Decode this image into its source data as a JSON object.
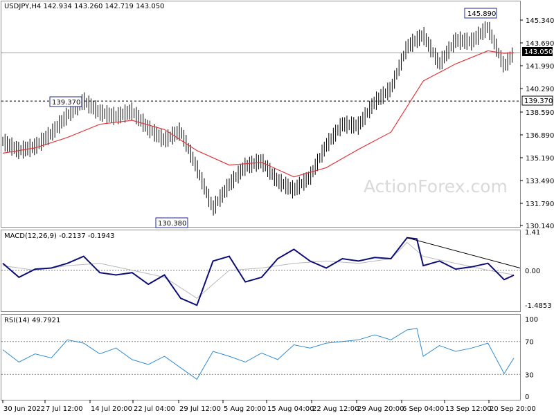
{
  "main_panel": {
    "header": "USDJPY,H4  142.934 143.260 142.719 143.050",
    "watermark": "ActionForex.com",
    "price_ticks": [
      "145.340",
      "143.690",
      "141.990",
      "140.290",
      "138.590",
      "136.890",
      "135.190",
      "133.490",
      "131.790",
      "130.140"
    ],
    "current_price": "143.050",
    "level_label": "139.370",
    "callouts": {
      "high": "145.890",
      "mid": "139.370",
      "low": "130.380"
    }
  },
  "macd_panel": {
    "header": "MACD(12,26,9) -0.2137 -0.1943",
    "ticks": [
      "1.41",
      "0.00",
      "-1.4853"
    ]
  },
  "rsi_panel": {
    "header": "RSI(14) 49.7921",
    "ticks": [
      "100",
      "70",
      "30",
      "0"
    ]
  },
  "x_axis": {
    "labels": [
      "30 Jun 2022",
      "7 Jul 12:00",
      "14 Jul 20:00",
      "22 Jul 04:00",
      "29 Jul 12:00",
      "5 Aug 20:00",
      "15 Aug 04:00",
      "22 Aug 12:00",
      "29 Aug 20:00",
      "6 Sep 04:00",
      "13 Sep 12:00",
      "20 Sep 20:00"
    ]
  },
  "colors": {
    "price": "#000000",
    "sma": "#e0393e",
    "macd": "#0c0c78",
    "signal": "#b8b8b8",
    "rsi": "#2f8bd1",
    "grid": "#808080"
  },
  "chart_data": [
    {
      "type": "line",
      "title": "USDJPY,H4",
      "series": [
        {
          "name": "",
          "x": [
            0,
            5,
            10,
            15,
            20,
            25,
            30,
            35,
            40,
            45,
            50,
            55,
            60,
            65,
            70,
            75,
            80,
            85,
            90,
            95,
            100,
            105,
            110,
            115,
            120,
            125,
            130,
            135,
            140,
            145,
            150,
            155,
            158
          ],
          "values": [
            136.3,
            135.6,
            135.9,
            136.9,
            138.3,
            139.4,
            138.5,
            138.2,
            138.6,
            137.3,
            136.4,
            137.1,
            134.3,
            131.2,
            133.0,
            134.4,
            134.8,
            133.3,
            132.6,
            133.6,
            136.0,
            137.6,
            137.5,
            139.3,
            140.3,
            143.5,
            144.4,
            142.2,
            144.0,
            143.9,
            145.0,
            142.0,
            143.05
          ]
        },
        {
          "name": "",
          "x": [
            0,
            10,
            20,
            30,
            40,
            50,
            60,
            70,
            80,
            90,
            100,
            110,
            120,
            130,
            140,
            150,
            155,
            158
          ],
          "values": [
            135.4,
            135.8,
            136.6,
            137.6,
            137.9,
            137.2,
            135.6,
            134.5,
            134.7,
            133.6,
            134.3,
            135.7,
            137.0,
            140.9,
            142.2,
            143.2,
            143.0,
            143.05
          ]
        }
      ],
      "ylim": [
        129.9,
        146.8
      ]
    },
    {
      "type": "line",
      "title": "MACD(12,26,9)",
      "series": [
        {
          "name": "",
          "x": [
            0,
            5,
            10,
            15,
            20,
            25,
            30,
            35,
            40,
            45,
            50,
            55,
            60,
            65,
            70,
            75,
            80,
            85,
            90,
            95,
            100,
            105,
            110,
            115,
            120,
            125,
            128,
            130,
            135,
            140,
            145,
            150,
            155,
            158
          ],
          "values": [
            0.3,
            -0.3,
            0.05,
            0.1,
            0.3,
            0.6,
            -0.1,
            -0.2,
            -0.1,
            -0.6,
            -0.2,
            -1.2,
            -1.5,
            0.4,
            0.6,
            -0.5,
            -0.3,
            0.5,
            0.9,
            0.4,
            0.1,
            0.5,
            0.4,
            0.55,
            0.5,
            1.4,
            1.35,
            0.2,
            0.4,
            0.05,
            0.15,
            0.3,
            -0.4,
            -0.21
          ]
        },
        {
          "name": "",
          "x": [
            0,
            10,
            20,
            30,
            40,
            50,
            60,
            70,
            80,
            90,
            100,
            110,
            120,
            125,
            130,
            140,
            150,
            158
          ],
          "values": [
            0.2,
            0.0,
            0.2,
            0.3,
            0.0,
            -0.3,
            -1.2,
            0.0,
            0.1,
            0.3,
            0.4,
            0.3,
            0.5,
            1.2,
            0.6,
            0.3,
            0.0,
            -0.19
          ]
        }
      ],
      "ylim": [
        -1.7,
        1.6
      ]
    },
    {
      "type": "line",
      "title": "RSI(14)",
      "series": [
        {
          "name": "",
          "x": [
            0,
            5,
            10,
            15,
            20,
            25,
            30,
            35,
            40,
            45,
            50,
            55,
            60,
            65,
            70,
            75,
            80,
            85,
            90,
            95,
            100,
            105,
            110,
            115,
            120,
            125,
            128,
            130,
            135,
            140,
            145,
            150,
            155,
            158
          ],
          "values": [
            60,
            45,
            55,
            50,
            72,
            68,
            55,
            62,
            48,
            42,
            52,
            38,
            24,
            58,
            52,
            45,
            56,
            48,
            66,
            62,
            68,
            70,
            72,
            78,
            72,
            84,
            86,
            52,
            65,
            58,
            62,
            68,
            31,
            49.8
          ]
        }
      ],
      "ylim": [
        0,
        100
      ]
    }
  ]
}
